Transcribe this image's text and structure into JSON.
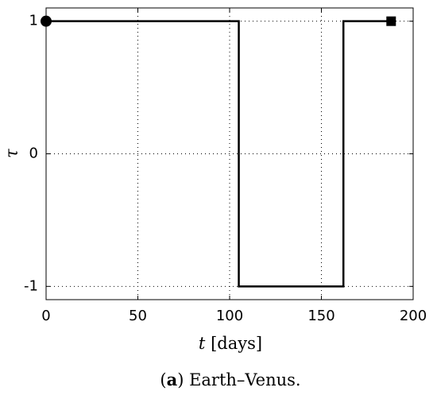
{
  "chart_data": {
    "type": "line",
    "xlabel": [
      "t",
      "[days]"
    ],
    "ylabel": "τ",
    "caption": [
      "(",
      "a",
      ") Earth–Venus."
    ],
    "series": [
      {
        "x": [
          0,
          105,
          105,
          162,
          162,
          188
        ],
        "values": [
          1,
          1,
          -1,
          -1,
          1,
          1
        ],
        "color": "#000000"
      }
    ],
    "markers": [
      {
        "x": 0,
        "y": 1,
        "shape": "circle"
      },
      {
        "x": 188,
        "y": 1,
        "shape": "square"
      }
    ],
    "xlim": [
      0,
      200
    ],
    "xticks": [
      0,
      50,
      100,
      150,
      200
    ],
    "ylim": [
      -1.1,
      1.1
    ],
    "yticks": [
      -1,
      0,
      1
    ],
    "grid": true
  }
}
